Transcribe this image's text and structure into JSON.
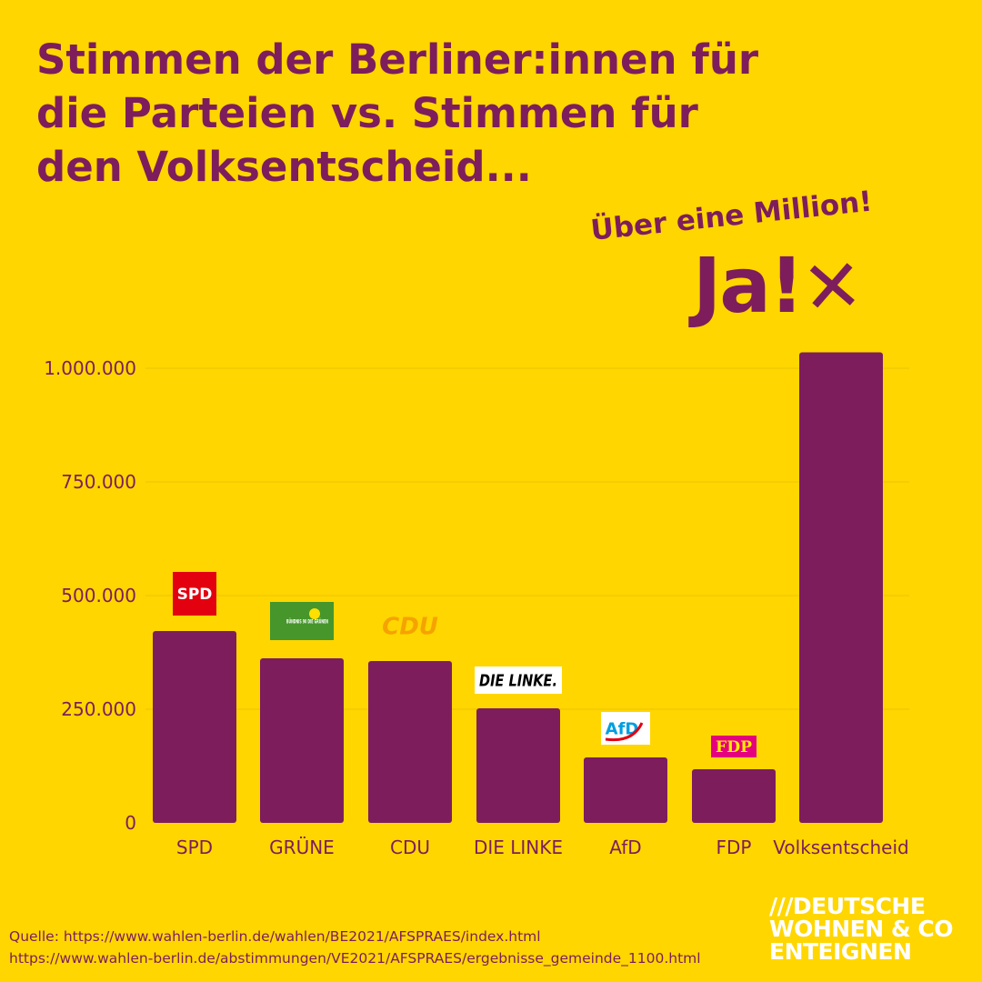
{
  "title_lines": [
    "Stimmen der Berliner:innen für",
    "die Parteien vs. Stimmen für",
    "den Volksentscheid..."
  ],
  "slogan": "Über eine Million!",
  "ja_logo": {
    "text": "Ja!",
    "mark": "✕"
  },
  "colors": {
    "background": "#FFD600",
    "bar": "#7D1D5C",
    "text": "#7D1D5C",
    "grid": "#EBC500"
  },
  "chart_data": {
    "type": "bar",
    "title": "Stimmen der Berliner:innen für die Parteien vs. Stimmen für den Volksentscheid...",
    "categories": [
      "SPD",
      "GRÜNE",
      "CDU",
      "DIE LINKE",
      "AfD",
      "FDP",
      "Volksentscheid"
    ],
    "values": [
      422000,
      362000,
      356000,
      252000,
      144000,
      118000,
      1035000
    ],
    "yticks": [
      0,
      250000,
      500000,
      750000,
      1000000
    ],
    "ytick_labels": [
      "0",
      "250.000",
      "500.000",
      "750.000",
      "1.000.000"
    ],
    "ylim": [
      0,
      1100000
    ],
    "grid": true,
    "xlabel": "",
    "ylabel": ""
  },
  "party_logos": [
    {
      "text": "SPD",
      "bg": "#E3000F",
      "fg": "#FFFFFF"
    },
    {
      "text": "BÜNDNIS 90 DIE GRÜNEN",
      "bg": "#46962B",
      "fg": "#FFFFFF"
    },
    {
      "text": "CDU",
      "bg": "none",
      "fg": "#F5A300"
    },
    {
      "text": "DIE LINKE.",
      "bg": "#FFFFFF",
      "fg": "#000000"
    },
    {
      "text": "AfD",
      "bg": "#FFFFFF",
      "fg": "#009EE0"
    },
    {
      "text": "FDP",
      "bg": "#E5007D",
      "fg": "#FFED00"
    }
  ],
  "source_lines": [
    "Quelle: https://www.wahlen-berlin.de/wahlen/BE2021/AFSPRAES/index.html",
    "https://www.wahlen-berlin.de/abstimmungen/VE2021/AFSPRAES/ergebnisse_gemeinde_1100.html"
  ],
  "brand_lines": [
    "///DEUTSCHE",
    "WOHNEN & CO",
    "ENTEIGNEN"
  ]
}
